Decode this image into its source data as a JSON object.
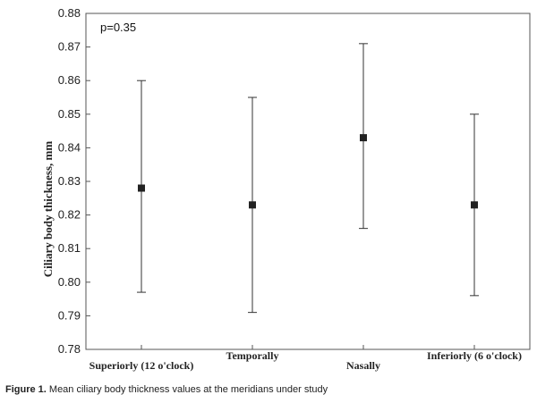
{
  "chart_data": {
    "type": "scatter",
    "ylabel": "Ciliary body thickness, mm",
    "xlabel": "",
    "ylim": [
      0.78,
      0.88
    ],
    "yticks": [
      0.78,
      0.79,
      0.8,
      0.81,
      0.82,
      0.83,
      0.84,
      0.85,
      0.86,
      0.87,
      0.88
    ],
    "ytick_labels": [
      "0.78",
      "0.79",
      "0.80",
      "0.81",
      "0.82",
      "0.83",
      "0.84",
      "0.85",
      "0.86",
      "0.87",
      "0.88"
    ],
    "grid": false,
    "annotation": "p=0.35",
    "categories": [
      "Superiorly (12 o'clock)",
      "Temporally",
      "Nasally",
      "Inferiorly (6 o'clock)"
    ],
    "means": [
      0.828,
      0.823,
      0.843,
      0.823
    ],
    "lower": [
      0.797,
      0.791,
      0.816,
      0.796
    ],
    "upper": [
      0.86,
      0.855,
      0.871,
      0.85
    ]
  },
  "caption": {
    "label": "Figure 1.",
    "text": " Mean ciliary body thickness values at the meridians under study"
  }
}
